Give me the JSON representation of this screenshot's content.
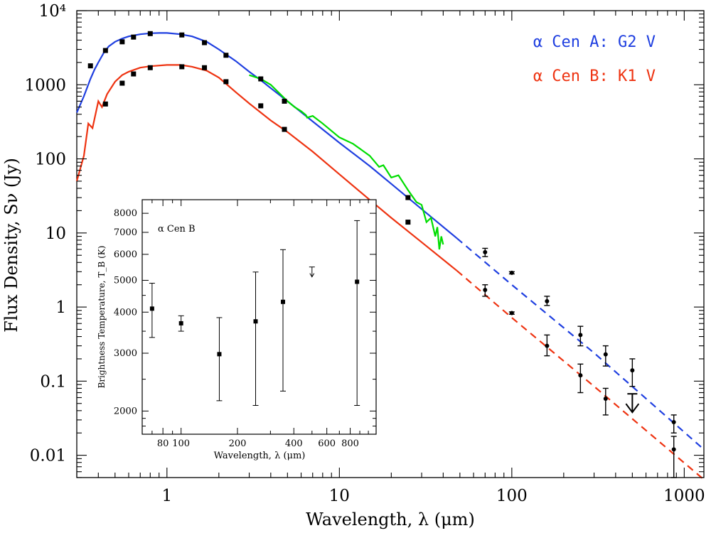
{
  "chart_data": [
    {
      "type": "line",
      "xlabel": "Wavelength, λ (μm)",
      "ylabel": "Flux Density, Sν (Jy)",
      "xscale": "log",
      "yscale": "log",
      "xlim": [
        0.3,
        1300
      ],
      "ylim": [
        0.005,
        10000
      ],
      "x_ticks": [
        1,
        10,
        100,
        1000
      ],
      "x_tick_labels": [
        "1",
        "10",
        "100",
        "1000"
      ],
      "y_ticks": [
        0.01,
        0.1,
        1,
        10,
        100,
        1000,
        10000
      ],
      "y_tick_labels": [
        "0.01",
        "0.1",
        "1",
        "10",
        "100",
        "1000",
        "10⁴"
      ],
      "grid": false,
      "legend": {
        "placement": "top-right",
        "entries": [
          {
            "label": "α Cen A: G2 V",
            "color": "#1f3fe0"
          },
          {
            "label": "α Cen B: K1 V",
            "color": "#ee3311"
          }
        ]
      },
      "series": [
        {
          "name": "α Cen A: G2 V",
          "color": "#1f3fe0",
          "model_solid": [
            [
              0.3,
              420
            ],
            [
              0.33,
              700
            ],
            [
              0.36,
              1200
            ],
            [
              0.38,
              1600
            ],
            [
              0.4,
              2000
            ],
            [
              0.43,
              2700
            ],
            [
              0.46,
              3300
            ],
            [
              0.5,
              3800
            ],
            [
              0.55,
              4200
            ],
            [
              0.6,
              4500
            ],
            [
              0.7,
              4800
            ],
            [
              0.8,
              4950
            ],
            [
              0.9,
              5000
            ],
            [
              1.0,
              5000
            ],
            [
              1.2,
              4800
            ],
            [
              1.4,
              4500
            ],
            [
              1.7,
              3800
            ],
            [
              2.0,
              3000
            ],
            [
              2.5,
              2100
            ],
            [
              3.0,
              1500
            ],
            [
              3.5,
              1150
            ],
            [
              4.0,
              900
            ],
            [
              5.0,
              600
            ],
            [
              7.0,
              320
            ],
            [
              10.0,
              165
            ],
            [
              15.0,
              80
            ],
            [
              20.0,
              46
            ],
            [
              30.0,
              21
            ],
            [
              48.0,
              8.5
            ]
          ],
          "model_dashed": [
            [
              48.0,
              8.5
            ],
            [
              100.0,
              2.0
            ],
            [
              300.0,
              0.24
            ],
            [
              1300.0,
              0.012
            ]
          ],
          "photometry": [
            {
              "x": 0.36,
              "y": 1800
            },
            {
              "x": 0.44,
              "y": 2900
            },
            {
              "x": 0.55,
              "y": 3800
            },
            {
              "x": 0.64,
              "y": 4400
            },
            {
              "x": 0.8,
              "y": 4900
            },
            {
              "x": 1.22,
              "y": 4700
            },
            {
              "x": 1.65,
              "y": 3700
            },
            {
              "x": 2.2,
              "y": 2500
            },
            {
              "x": 3.5,
              "y": 1200
            },
            {
              "x": 4.8,
              "y": 600
            },
            {
              "x": 25.0,
              "y": 30
            },
            {
              "x": 70.0,
              "y": 5.5,
              "err": [
                4.8,
                6.2
              ]
            },
            {
              "x": 100.0,
              "y": 2.9,
              "err": [
                2.8,
                3.0
              ]
            },
            {
              "x": 160.0,
              "y": 1.2,
              "err": [
                1.05,
                1.4
              ]
            },
            {
              "x": 250.0,
              "y": 0.42,
              "err": [
                0.3,
                0.55
              ]
            },
            {
              "x": 350.0,
              "y": 0.23,
              "err": [
                0.16,
                0.3
              ]
            },
            {
              "x": 500.0,
              "y": 0.14,
              "err": [
                0.085,
                0.2
              ]
            },
            {
              "x": 870.0,
              "y": 0.028,
              "err": [
                0.02,
                0.035
              ]
            }
          ]
        },
        {
          "name": "α Cen B: K1 V",
          "color": "#ee3311",
          "model_solid": [
            [
              0.3,
              50
            ],
            [
              0.33,
              110
            ],
            [
              0.35,
              300
            ],
            [
              0.37,
              260
            ],
            [
              0.4,
              600
            ],
            [
              0.42,
              500
            ],
            [
              0.45,
              750
            ],
            [
              0.5,
              1100
            ],
            [
              0.55,
              1350
            ],
            [
              0.6,
              1500
            ],
            [
              0.7,
              1700
            ],
            [
              0.8,
              1780
            ],
            [
              1.0,
              1850
            ],
            [
              1.2,
              1850
            ],
            [
              1.4,
              1750
            ],
            [
              1.7,
              1550
            ],
            [
              2.0,
              1250
            ],
            [
              2.5,
              800
            ],
            [
              3.0,
              560
            ],
            [
              4.0,
              330
            ],
            [
              5.0,
              230
            ],
            [
              7.0,
              125
            ],
            [
              10.0,
              62
            ],
            [
              15.0,
              28
            ],
            [
              20.0,
              16
            ],
            [
              30.0,
              7.5
            ],
            [
              48.0,
              3.1
            ]
          ],
          "model_dashed": [
            [
              48.0,
              3.1
            ],
            [
              100.0,
              0.72
            ],
            [
              300.0,
              0.085
            ],
            [
              1300.0,
              0.0047
            ]
          ],
          "photometry": [
            {
              "x": 0.44,
              "y": 550
            },
            {
              "x": 0.55,
              "y": 1050
            },
            {
              "x": 0.64,
              "y": 1400
            },
            {
              "x": 0.8,
              "y": 1700
            },
            {
              "x": 1.22,
              "y": 1750
            },
            {
              "x": 1.65,
              "y": 1700
            },
            {
              "x": 2.2,
              "y": 1100
            },
            {
              "x": 3.5,
              "y": 520
            },
            {
              "x": 4.8,
              "y": 250
            },
            {
              "x": 25.0,
              "y": 14
            },
            {
              "x": 70.0,
              "y": 1.7,
              "err": [
                1.4,
                2.0
              ]
            },
            {
              "x": 100.0,
              "y": 0.83,
              "err": [
                0.8,
                0.86
              ]
            },
            {
              "x": 160.0,
              "y": 0.3,
              "err": [
                0.22,
                0.42
              ]
            },
            {
              "x": 250.0,
              "y": 0.12,
              "err": [
                0.07,
                0.17
              ]
            },
            {
              "x": 350.0,
              "y": 0.058,
              "err": [
                0.035,
                0.08
              ]
            },
            {
              "x": 870.0,
              "y": 0.012,
              "err": [
                0.005,
                0.018
              ]
            }
          ],
          "upper_limit": {
            "x": 500.0,
            "y": 0.038
          }
        },
        {
          "color": "#00dd00",
          "model_solid": [
            [
              3.0,
              1350
            ],
            [
              3.5,
              1200
            ],
            [
              4.0,
              1000
            ],
            [
              5.0,
              600
            ],
            [
              5.5,
              500
            ],
            [
              6.0,
              440
            ],
            [
              6.4,
              390
            ],
            [
              6.5,
              360
            ],
            [
              7.0,
              380
            ],
            [
              8.0,
              300
            ],
            [
              10.0,
              195
            ],
            [
              12.0,
              160
            ],
            [
              15.0,
              110
            ],
            [
              17.0,
              78
            ],
            [
              18.0,
              82
            ],
            [
              20.0,
              56
            ],
            [
              22.0,
              60
            ],
            [
              25.0,
              38
            ],
            [
              28.0,
              26
            ],
            [
              30.0,
              24
            ],
            [
              32.0,
              14
            ],
            [
              34.0,
              16
            ],
            [
              36.0,
              9
            ],
            [
              37.0,
              12
            ],
            [
              38.0,
              6
            ],
            [
              39.0,
              9
            ],
            [
              40.0,
              7
            ]
          ]
        }
      ]
    },
    {
      "type": "scatter",
      "title": "α Cen B",
      "xlabel": "Wavelength, λ (μm)",
      "ylabel": "Brightness Temperature, T_B (K)",
      "xscale": "log",
      "yscale": "log",
      "xlim": [
        62,
        1100
      ],
      "ylim": [
        1700,
        8800
      ],
      "x_ticks": [
        80,
        100,
        200,
        400,
        600,
        800
      ],
      "x_tick_labels": [
        "80",
        "100",
        "200",
        "400",
        "600",
        "800"
      ],
      "y_ticks": [
        2000,
        3000,
        4000,
        5000,
        6000,
        7000,
        8000
      ],
      "y_tick_labels": [
        "2000",
        "3000",
        "4000",
        "5000",
        "6000",
        "7000",
        "8000"
      ],
      "points": [
        {
          "x": 70,
          "y": 4100,
          "err": [
            3350,
            4900
          ]
        },
        {
          "x": 100,
          "y": 3700,
          "err": [
            3500,
            3900
          ]
        },
        {
          "x": 160,
          "y": 2980,
          "err": [
            2150,
            3850
          ]
        },
        {
          "x": 250,
          "y": 3750,
          "err": [
            2080,
            5300
          ]
        },
        {
          "x": 350,
          "y": 4300,
          "err": [
            2300,
            6200
          ]
        },
        {
          "x": 870,
          "y": 4950,
          "err": [
            2080,
            7600
          ]
        }
      ],
      "upper_limit": {
        "x": 500,
        "y": 5250
      }
    }
  ]
}
